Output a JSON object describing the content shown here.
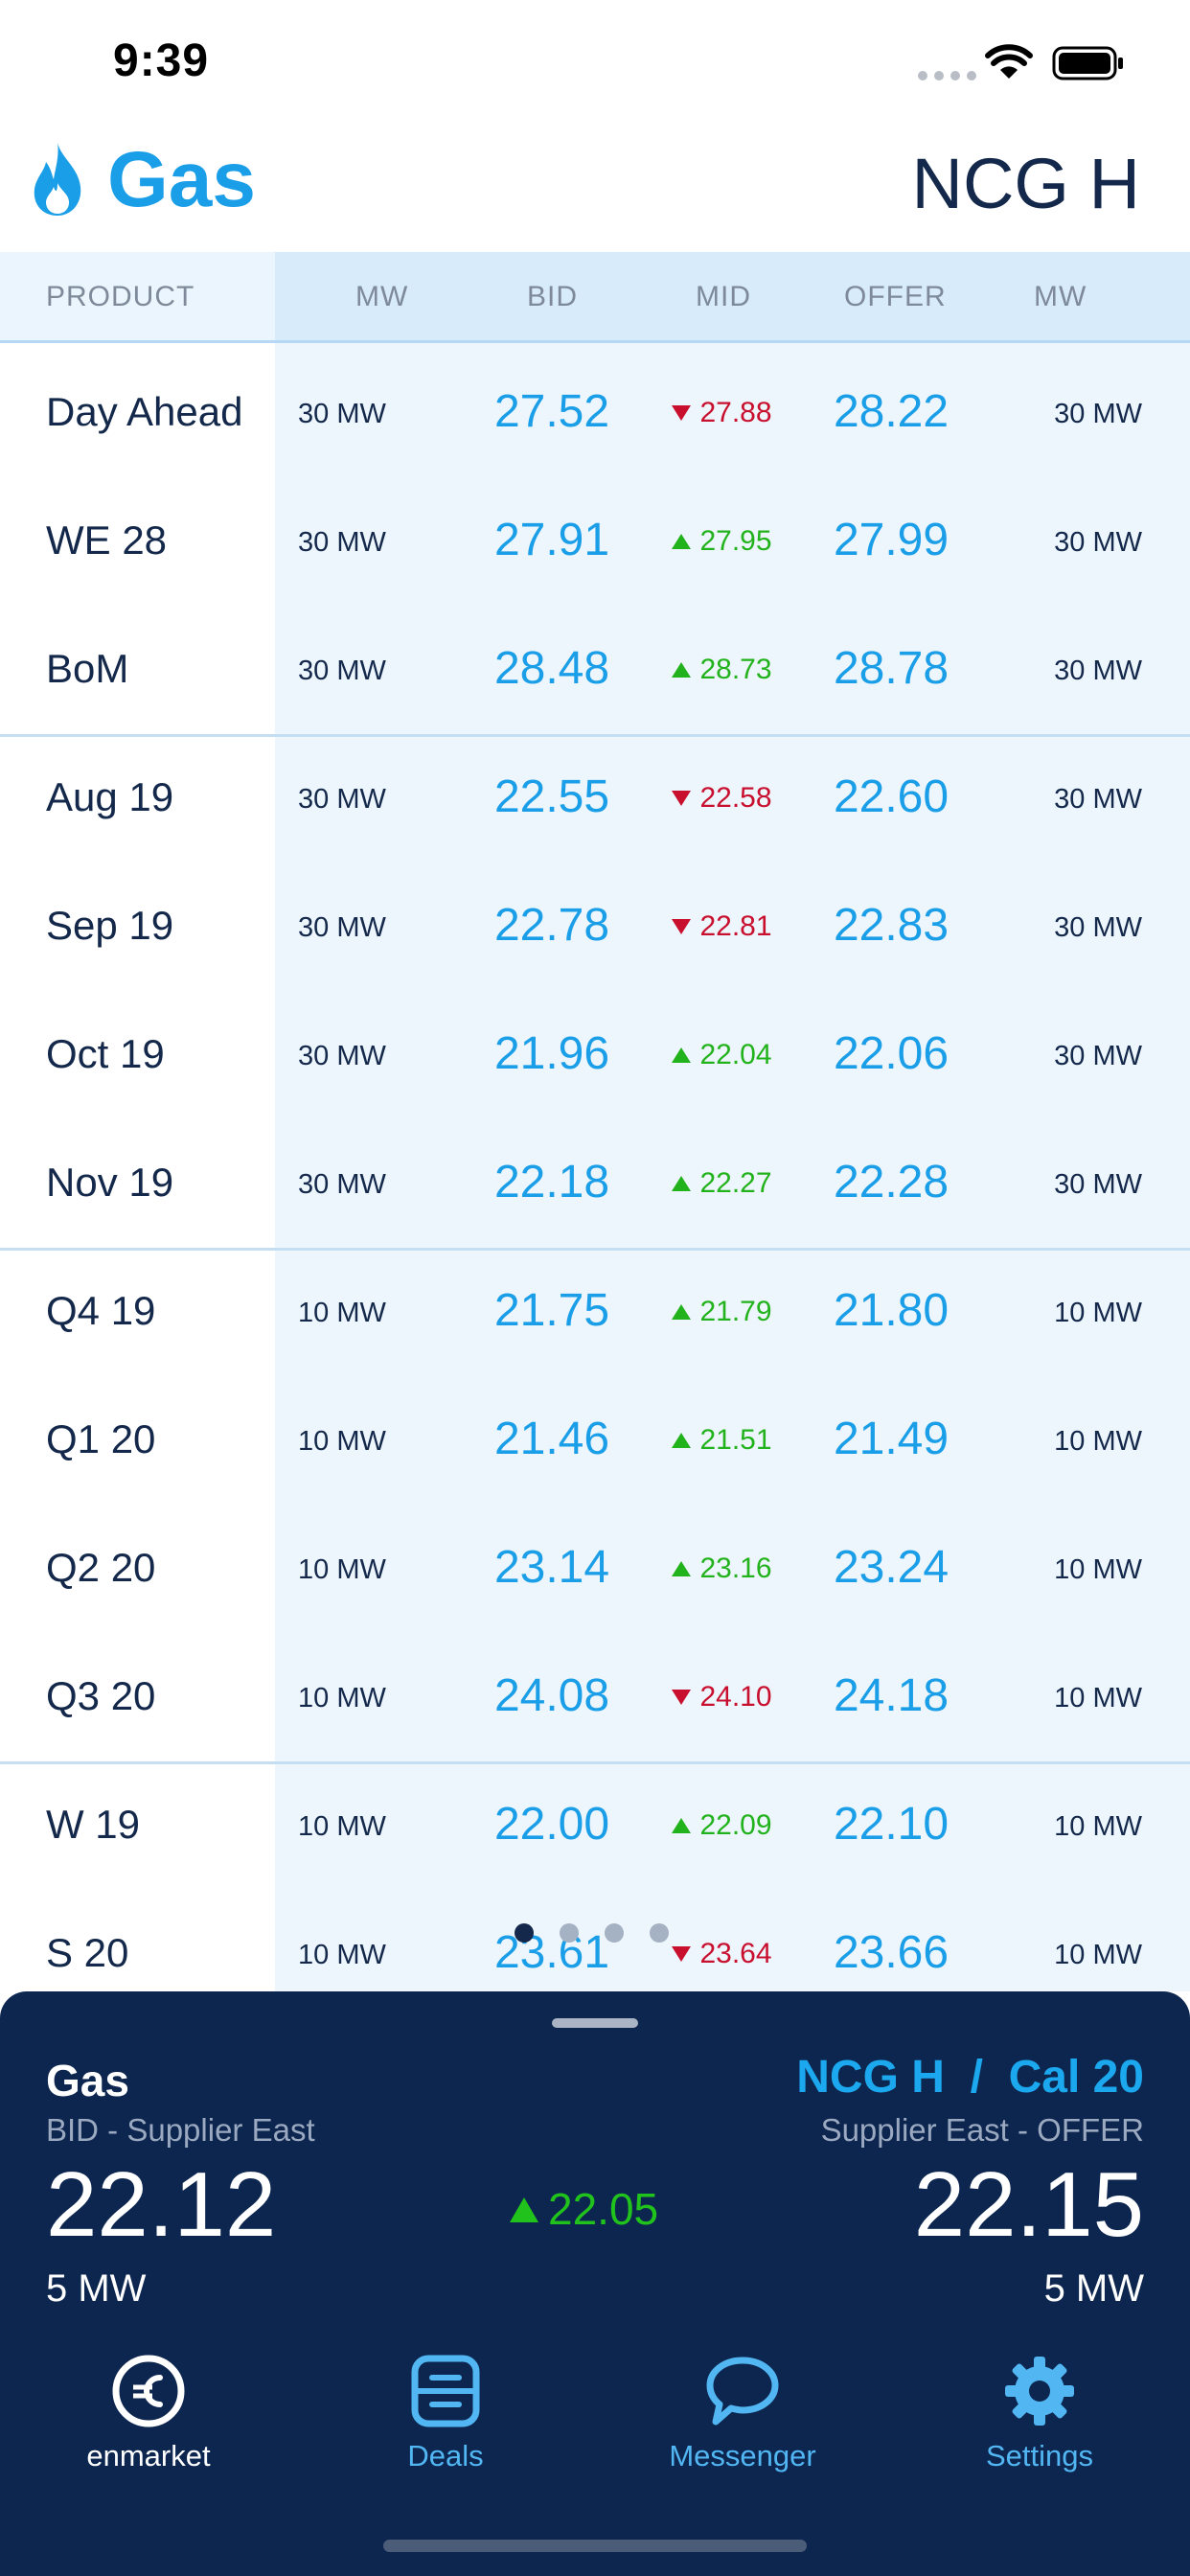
{
  "status_bar": {
    "time": "9:39"
  },
  "header": {
    "app_title": "Gas",
    "market": "NCG H"
  },
  "columns": {
    "product": "PRODUCT",
    "mw_left": "MW",
    "bid": "BID",
    "mid": "MID",
    "offer": "OFFER",
    "mw_right": "MW"
  },
  "rows": [
    {
      "product": "Day Ahead",
      "mw_left": "30 MW",
      "bid": "27.52",
      "mid": "27.88",
      "trend": "down",
      "offer": "28.22",
      "mw_right": "30 MW"
    },
    {
      "product": "WE 28",
      "mw_left": "30 MW",
      "bid": "27.91",
      "mid": "27.95",
      "trend": "up",
      "offer": "27.99",
      "mw_right": "30 MW"
    },
    {
      "product": "BoM",
      "mw_left": "30 MW",
      "bid": "28.48",
      "mid": "28.73",
      "trend": "up",
      "offer": "28.78",
      "mw_right": "30 MW"
    },
    {
      "product": "Aug 19",
      "mw_left": "30 MW",
      "bid": "22.55",
      "mid": "22.58",
      "trend": "down",
      "offer": "22.60",
      "mw_right": "30 MW"
    },
    {
      "product": "Sep 19",
      "mw_left": "30 MW",
      "bid": "22.78",
      "mid": "22.81",
      "trend": "down",
      "offer": "22.83",
      "mw_right": "30 MW"
    },
    {
      "product": "Oct 19",
      "mw_left": "30 MW",
      "bid": "21.96",
      "mid": "22.04",
      "trend": "up",
      "offer": "22.06",
      "mw_right": "30 MW"
    },
    {
      "product": "Nov 19",
      "mw_left": "30 MW",
      "bid": "22.18",
      "mid": "22.27",
      "trend": "up",
      "offer": "22.28",
      "mw_right": "30 MW"
    },
    {
      "product": "Q4 19",
      "mw_left": "10 MW",
      "bid": "21.75",
      "mid": "21.79",
      "trend": "up",
      "offer": "21.80",
      "mw_right": "10 MW"
    },
    {
      "product": "Q1 20",
      "mw_left": "10 MW",
      "bid": "21.46",
      "mid": "21.51",
      "trend": "up",
      "offer": "21.49",
      "mw_right": "10 MW"
    },
    {
      "product": "Q2 20",
      "mw_left": "10 MW",
      "bid": "23.14",
      "mid": "23.16",
      "trend": "up",
      "offer": "23.24",
      "mw_right": "10 MW"
    },
    {
      "product": "Q3 20",
      "mw_left": "10 MW",
      "bid": "24.08",
      "mid": "24.10",
      "trend": "down",
      "offer": "24.18",
      "mw_right": "10 MW"
    },
    {
      "product": "W 19",
      "mw_left": "10 MW",
      "bid": "22.00",
      "mid": "22.09",
      "trend": "up",
      "offer": "22.10",
      "mw_right": "10 MW"
    },
    {
      "product": "S 20",
      "mw_left": "10 MW",
      "bid": "23.61",
      "mid": "23.64",
      "trend": "down",
      "offer": "23.66",
      "mw_right": "10 MW"
    }
  ],
  "pager": {
    "pages": 4,
    "active": 0
  },
  "panel": {
    "product": "Gas",
    "bid_label": "BID - Supplier East",
    "bid": "22.12",
    "bid_mw": "5 MW",
    "mid": "22.05",
    "mid_trend": "up",
    "market": "NCG H  /  Cal 20",
    "offer_label": "Supplier East - OFFER",
    "offer": "22.15",
    "offer_mw": "5 MW"
  },
  "tabs": [
    {
      "label": "enmarket",
      "icon": "euro-icon",
      "active": true
    },
    {
      "label": "Deals",
      "icon": "deals-icon",
      "active": false
    },
    {
      "label": "Messenger",
      "icon": "chat-bubble-icon",
      "active": false
    },
    {
      "label": "Settings",
      "icon": "gear-icon",
      "active": false
    }
  ],
  "colors": {
    "accent": "#1a9ee8",
    "up": "#22b21c",
    "down": "#c8102e",
    "panel": "#0c2650"
  }
}
